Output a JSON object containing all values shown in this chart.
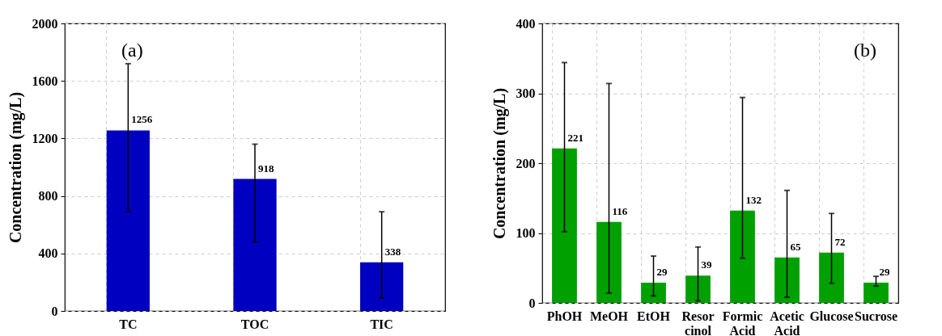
{
  "chart_data": [
    {
      "type": "bar",
      "title": "(a)",
      "categories": [
        "TC",
        "TOC",
        "TIC"
      ],
      "values": [
        1256,
        918,
        338
      ],
      "color": "#0000c0",
      "errors": [
        [
          690,
          1720
        ],
        [
          480,
          1160
        ],
        [
          90,
          690
        ]
      ],
      "ylabel": "Concentration (mg/L)",
      "ylim": [
        0,
        2000
      ],
      "yticks": [
        0,
        400,
        800,
        1200,
        1600,
        2000
      ],
      "grid": true,
      "data_labels": true
    },
    {
      "type": "bar",
      "title": "(b)",
      "categories": [
        "PhOH",
        "MeOH",
        "EtOH",
        "Resor\ncinol",
        "Formic\nAcid",
        "Acetic\nAcid",
        "Glucose",
        "Sucrose"
      ],
      "values": [
        221,
        116,
        29,
        39,
        132,
        65,
        72,
        29
      ],
      "color": "#00a000",
      "errors": [
        [
          102,
          344
        ],
        [
          14,
          314
        ],
        [
          10,
          67
        ],
        [
          3,
          80
        ],
        [
          64,
          294
        ],
        [
          8,
          161
        ],
        [
          28,
          128
        ],
        [
          24,
          38
        ]
      ],
      "ylabel": "Concentration (mg/L)",
      "ylim": [
        0,
        400
      ],
      "yticks": [
        0,
        100,
        200,
        300,
        400
      ],
      "grid": true,
      "data_labels": true
    }
  ]
}
